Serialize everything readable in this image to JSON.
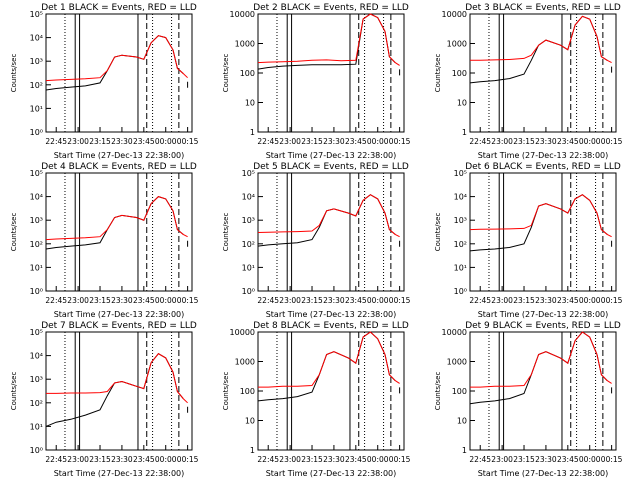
{
  "figure": {
    "background": "#ffffff",
    "axis_color": "#000000",
    "event_color": "#000000",
    "lld_color": "#ff0000"
  },
  "chart_data": [
    {
      "type": "line",
      "title": "Det 1  BLACK = Events, RED = LLD",
      "xlabel": "Start Time (27-Dec-13 22:38:00)",
      "ylabel": "Counts/sec",
      "yscale": "log",
      "ylim": [
        1,
        100000
      ],
      "yticks": [
        "10⁰",
        "10¹",
        "10²",
        "10³",
        "10⁴",
        "10⁵"
      ],
      "xticks": [
        "22:45",
        "23:00",
        "23:15",
        "23:30",
        "23:45",
        "00:00",
        "00:15"
      ],
      "x": [
        "22:38",
        "22:45",
        "22:55",
        "23:05",
        "23:15",
        "23:20",
        "23:25",
        "23:30",
        "23:40",
        "23:45",
        "23:50",
        "23:55",
        "00:00",
        "00:05",
        "00:08",
        "00:12",
        "00:15"
      ],
      "series": [
        {
          "name": "Events",
          "values": [
            60,
            70,
            80,
            90,
            120,
            400,
            1500,
            1800,
            1500,
            1200,
            6000,
            12000,
            10000,
            3000,
            500,
            300,
            200
          ]
        },
        {
          "name": "LLD",
          "values": [
            150,
            160,
            170,
            180,
            200,
            400,
            1500,
            1800,
            1500,
            1200,
            6000,
            12000,
            10000,
            3000,
            500,
            300,
            200
          ]
        }
      ]
    },
    {
      "type": "line",
      "title": "Det 2  BLACK = Events, RED = LLD",
      "xlabel": "Start Time (27-Dec-13 22:38:00)",
      "ylabel": "Counts/sec",
      "yscale": "log",
      "ylim": [
        1,
        12000
      ],
      "yticks": [
        "1",
        "10",
        "100",
        "1000",
        "10000"
      ],
      "xticks": [
        "22:45",
        "23:00",
        "23:15",
        "23:30",
        "23:45",
        "00:00",
        "00:15"
      ],
      "x": [
        "22:38",
        "22:45",
        "22:55",
        "23:05",
        "23:15",
        "23:25",
        "23:35",
        "23:45",
        "23:50",
        "23:55",
        "00:00",
        "00:05",
        "00:08",
        "00:12",
        "00:15"
      ],
      "series": [
        {
          "name": "Events",
          "values": [
            150,
            170,
            190,
            200,
            210,
            210,
            210,
            220,
            8000,
            12000,
            9000,
            3000,
            400,
            250,
            200
          ]
        },
        {
          "name": "LLD",
          "values": [
            250,
            260,
            270,
            280,
            300,
            310,
            290,
            300,
            8000,
            12000,
            9000,
            3000,
            400,
            250,
            200
          ]
        }
      ]
    },
    {
      "type": "line",
      "title": "Det 3  BLACK = Events, RED = LLD",
      "xlabel": "Start Time (27-Dec-13 22:38:00)",
      "ylabel": "Counts/sec",
      "yscale": "log",
      "ylim": [
        1,
        12000
      ],
      "yticks": [
        "1",
        "10",
        "100",
        "1000",
        "10000"
      ],
      "xticks": [
        "22:45",
        "23:00",
        "23:15",
        "23:30",
        "23:45",
        "00:00",
        "00:15"
      ],
      "x": [
        "22:38",
        "22:45",
        "22:55",
        "23:05",
        "23:15",
        "23:20",
        "23:25",
        "23:30",
        "23:40",
        "23:45",
        "23:50",
        "23:55",
        "00:00",
        "00:05",
        "00:08",
        "00:12",
        "00:15"
      ],
      "series": [
        {
          "name": "Events",
          "values": [
            50,
            55,
            60,
            70,
            100,
            300,
            1000,
            1500,
            1000,
            700,
            5000,
            10000,
            8000,
            2000,
            400,
            300,
            250
          ]
        },
        {
          "name": "LLD",
          "values": [
            300,
            300,
            310,
            320,
            350,
            450,
            1000,
            1500,
            1000,
            700,
            5000,
            10000,
            8000,
            2000,
            400,
            300,
            250
          ]
        }
      ]
    },
    {
      "type": "line",
      "title": "Det 4  BLACK = Events, RED = LLD",
      "xlabel": "Start Time (27-Dec-13 22:38:00)",
      "ylabel": "Counts/sec",
      "yscale": "log",
      "ylim": [
        1,
        100000
      ],
      "yticks": [
        "10⁰",
        "10¹",
        "10²",
        "10³",
        "10⁴",
        "10⁵"
      ],
      "xticks": [
        "22:45",
        "23:00",
        "23:15",
        "23:30",
        "23:45",
        "00:00",
        "00:15"
      ],
      "x": [
        "22:38",
        "22:45",
        "22:55",
        "23:05",
        "23:15",
        "23:20",
        "23:25",
        "23:30",
        "23:40",
        "23:45",
        "23:50",
        "23:55",
        "00:00",
        "00:05",
        "00:08",
        "00:12",
        "00:15"
      ],
      "series": [
        {
          "name": "Events",
          "values": [
            60,
            70,
            80,
            90,
            110,
            400,
            1300,
            1600,
            1300,
            1000,
            5000,
            10000,
            8000,
            2500,
            400,
            250,
            200
          ]
        },
        {
          "name": "LLD",
          "values": [
            150,
            160,
            170,
            180,
            200,
            400,
            1300,
            1600,
            1300,
            1000,
            5000,
            10000,
            8000,
            2500,
            400,
            250,
            200
          ]
        }
      ]
    },
    {
      "type": "line",
      "title": "Det 5  BLACK = Events, RED = LLD",
      "xlabel": "Start Time (27-Dec-13 22:38:00)",
      "ylabel": "Counts/sec",
      "yscale": "log",
      "ylim": [
        1,
        100000
      ],
      "yticks": [
        "10⁰",
        "10¹",
        "10²",
        "10³",
        "10⁴",
        "10⁵"
      ],
      "xticks": [
        "22:45",
        "23:00",
        "23:15",
        "23:30",
        "23:45",
        "00:00",
        "00:15"
      ],
      "x": [
        "22:38",
        "22:45",
        "22:55",
        "23:05",
        "23:15",
        "23:20",
        "23:25",
        "23:30",
        "23:40",
        "23:45",
        "23:50",
        "23:55",
        "00:00",
        "00:05",
        "00:08",
        "00:12",
        "00:15"
      ],
      "series": [
        {
          "name": "Events",
          "values": [
            80,
            90,
            100,
            110,
            150,
            500,
            2500,
            3000,
            2000,
            1500,
            7000,
            12000,
            8000,
            2000,
            400,
            250,
            200
          ]
        },
        {
          "name": "LLD",
          "values": [
            300,
            310,
            320,
            330,
            350,
            600,
            2500,
            3000,
            2000,
            1500,
            7000,
            12000,
            8000,
            2000,
            400,
            250,
            200
          ]
        }
      ]
    },
    {
      "type": "line",
      "title": "Det 6  BLACK = Events, RED = LLD",
      "xlabel": "Start Time (27-Dec-13 22:38:00)",
      "ylabel": "Counts/sec",
      "yscale": "log",
      "ylim": [
        1,
        100000
      ],
      "yticks": [
        "10⁰",
        "10¹",
        "10²",
        "10³",
        "10⁴",
        "10⁵"
      ],
      "xticks": [
        "22:45",
        "23:00",
        "23:15",
        "23:30",
        "23:45",
        "00:00",
        "00:15"
      ],
      "x": [
        "22:38",
        "22:45",
        "22:55",
        "23:05",
        "23:15",
        "23:20",
        "23:25",
        "23:30",
        "23:40",
        "23:45",
        "23:50",
        "23:55",
        "00:00",
        "00:05",
        "00:08",
        "00:12",
        "00:15"
      ],
      "series": [
        {
          "name": "Events",
          "values": [
            50,
            55,
            60,
            70,
            100,
            500,
            4000,
            5000,
            3000,
            2000,
            8000,
            12000,
            7000,
            2000,
            400,
            250,
            200
          ]
        },
        {
          "name": "LLD",
          "values": [
            400,
            410,
            420,
            430,
            450,
            600,
            4000,
            5000,
            3000,
            2000,
            8000,
            12000,
            7000,
            2000,
            400,
            250,
            200
          ]
        }
      ]
    },
    {
      "type": "line",
      "title": "Det 7  BLACK = Events, RED = LLD",
      "xlabel": "Start Time (27-Dec-13 22:38:00)",
      "ylabel": "Counts/sec",
      "yscale": "log",
      "ylim": [
        1,
        100000
      ],
      "yticks": [
        "10⁰",
        "10¹",
        "10²",
        "10³",
        "10⁴",
        "10⁵"
      ],
      "xticks": [
        "22:45",
        "23:00",
        "23:15",
        "23:30",
        "23:45",
        "00:00",
        "00:15"
      ],
      "x": [
        "22:38",
        "22:45",
        "22:55",
        "23:05",
        "23:15",
        "23:20",
        "23:25",
        "23:30",
        "23:40",
        "23:45",
        "23:50",
        "23:55",
        "00:00",
        "00:05",
        "00:08",
        "00:12",
        "00:15"
      ],
      "series": [
        {
          "name": "Events",
          "values": [
            10,
            15,
            20,
            30,
            50,
            200,
            700,
            800,
            500,
            400,
            5000,
            12000,
            8000,
            2000,
            300,
            150,
            100
          ]
        },
        {
          "name": "LLD",
          "values": [
            250,
            250,
            260,
            260,
            270,
            300,
            700,
            800,
            500,
            400,
            5000,
            12000,
            8000,
            2000,
            300,
            150,
            100
          ]
        }
      ]
    },
    {
      "type": "line",
      "title": "Det 8  BLACK = Events, RED = LLD",
      "xlabel": "Start Time (27-Dec-13 22:38:00)",
      "ylabel": "Counts/sec",
      "yscale": "log",
      "ylim": [
        1,
        12000
      ],
      "yticks": [
        "1",
        "10",
        "100",
        "1000",
        "10000"
      ],
      "xticks": [
        "22:45",
        "23:00",
        "23:15",
        "23:30",
        "23:45",
        "00:00",
        "00:15"
      ],
      "x": [
        "22:38",
        "22:45",
        "22:55",
        "23:05",
        "23:15",
        "23:20",
        "23:25",
        "23:30",
        "23:40",
        "23:45",
        "23:50",
        "23:55",
        "00:00",
        "00:05",
        "00:08",
        "00:12",
        "00:15"
      ],
      "series": [
        {
          "name": "Events",
          "values": [
            50,
            55,
            60,
            70,
            100,
            400,
            2000,
            2500,
            1500,
            1000,
            8000,
            12000,
            7000,
            2000,
            400,
            250,
            200
          ]
        },
        {
          "name": "LLD",
          "values": [
            150,
            150,
            160,
            160,
            170,
            400,
            2000,
            2500,
            1500,
            1000,
            8000,
            12000,
            7000,
            2000,
            400,
            250,
            200
          ]
        }
      ]
    },
    {
      "type": "line",
      "title": "Det 9  BLACK = Events, RED = LLD",
      "xlabel": "Start Time (27-Dec-13 22:38:00)",
      "ylabel": "Counts/sec",
      "yscale": "log",
      "ylim": [
        1,
        12000
      ],
      "yticks": [
        "1",
        "10",
        "100",
        "1000",
        "10000"
      ],
      "xticks": [
        "22:45",
        "23:00",
        "23:15",
        "23:30",
        "23:45",
        "00:00",
        "00:15"
      ],
      "x": [
        "22:38",
        "22:45",
        "22:55",
        "23:05",
        "23:15",
        "23:20",
        "23:25",
        "23:30",
        "23:40",
        "23:45",
        "23:50",
        "23:55",
        "00:00",
        "00:05",
        "00:08",
        "00:12",
        "00:15"
      ],
      "series": [
        {
          "name": "Events",
          "values": [
            40,
            45,
            50,
            60,
            90,
            400,
            2000,
            2500,
            1500,
            1000,
            6000,
            12000,
            8000,
            2000,
            400,
            250,
            200
          ]
        },
        {
          "name": "LLD",
          "values": [
            150,
            150,
            160,
            160,
            170,
            400,
            2000,
            2500,
            1500,
            1000,
            6000,
            12000,
            8000,
            2000,
            400,
            250,
            200
          ]
        }
      ]
    }
  ]
}
